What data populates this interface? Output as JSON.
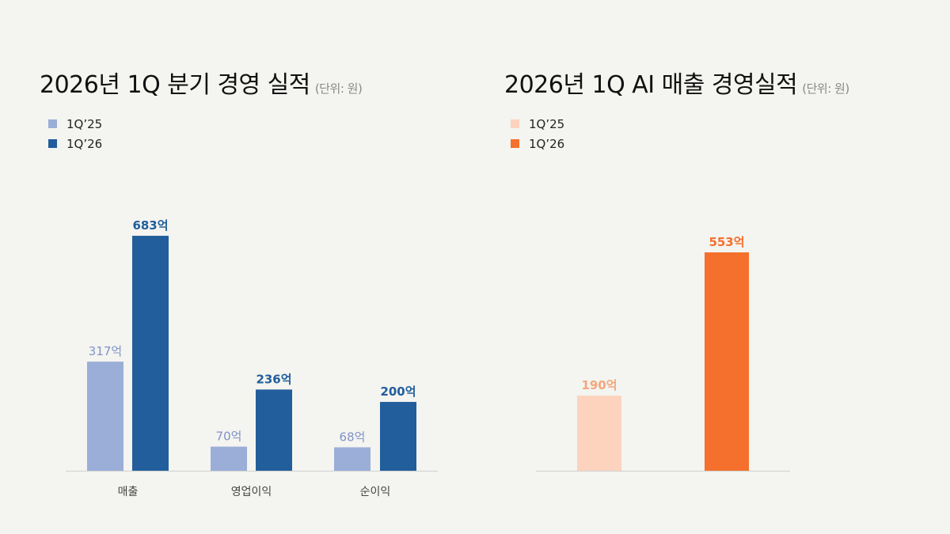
{
  "chart_data": [
    {
      "type": "bar",
      "title": "2026년 1Q 분기 경영 실적",
      "unit": "(단위: 원)",
      "categories": [
        "매출",
        "영업이익",
        "순이익"
      ],
      "series": [
        {
          "name": "1Q’25",
          "color": "#9BAED8",
          "values": [
            317,
            70,
            68
          ],
          "labels": [
            "317억",
            "70억",
            "68억"
          ]
        },
        {
          "name": "1Q’26",
          "color": "#215E9B",
          "values": [
            683,
            236,
            200
          ],
          "labels": [
            "683억",
            "236억",
            "200억"
          ]
        }
      ],
      "legend": "top-left",
      "ylim": [
        0,
        690
      ]
    },
    {
      "type": "bar",
      "title": "2026년 1Q AI 매출 경영실적",
      "unit": "(단위: 원)",
      "categories": [
        ""
      ],
      "series": [
        {
          "name": "1Q’25",
          "color": "#FDD3BE",
          "values": [
            190
          ],
          "labels": [
            "190억"
          ]
        },
        {
          "name": "1Q’26",
          "color": "#F4702C",
          "values": [
            553
          ],
          "labels": [
            "553억"
          ]
        }
      ],
      "legend": "top-left",
      "ylim": [
        0,
        600
      ]
    }
  ]
}
